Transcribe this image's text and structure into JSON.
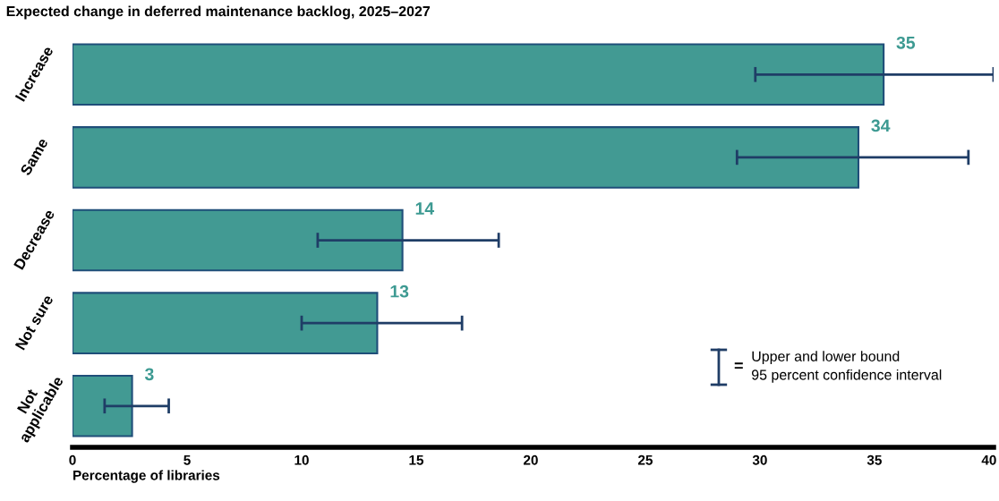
{
  "chart_data": {
    "type": "bar",
    "orientation": "horizontal",
    "title": "Expected change in deferred maintenance backlog, 2025–2027",
    "xlabel": "Percentage of libraries",
    "categories": [
      "Increase",
      "Same",
      "Decrease",
      "Not sure",
      "Not\napplicable"
    ],
    "values": [
      35.4,
      34.3,
      14.4,
      13.3,
      2.6
    ],
    "value_labels": [
      "35",
      "34",
      "14",
      "13",
      "3"
    ],
    "errors": [
      [
        29.8,
        40.2
      ],
      [
        29.0,
        39.1
      ],
      [
        10.7,
        18.6
      ],
      [
        10.0,
        17.0
      ],
      [
        1.4,
        4.2
      ]
    ],
    "color": "#429a93",
    "xlim": [
      0,
      40.2
    ],
    "xticks": [
      0,
      5,
      10,
      15,
      20,
      25,
      30,
      35,
      40
    ],
    "grid": false,
    "annotations": [
      "=",
      "Upper and lower bound\n95 percent confidence interval"
    ]
  }
}
